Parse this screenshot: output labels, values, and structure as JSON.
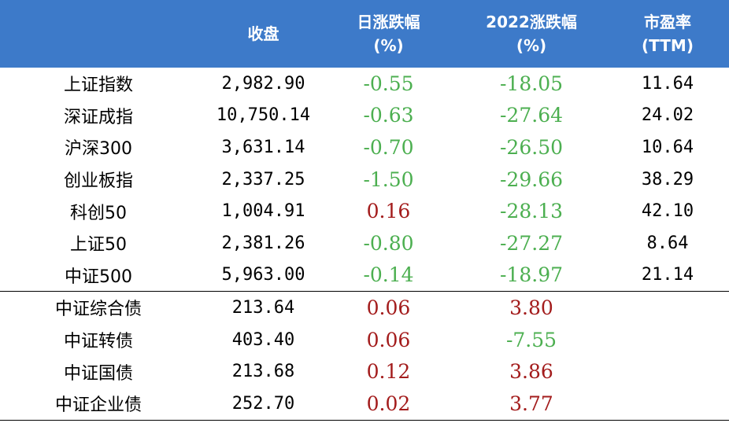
{
  "colors": {
    "header_bg": "#3d7ac9",
    "header_text": "#ffffff",
    "negative": "#4caf50",
    "positive": "#a31c1c"
  },
  "header": {
    "name": "",
    "close": "收盘",
    "daily_change": [
      "日涨跌幅",
      "(%)"
    ],
    "ytd_change": [
      "2022涨跌幅",
      "(%)"
    ],
    "pe": [
      "市盈率",
      "(TTM)"
    ]
  },
  "rows": [
    {
      "name": "上证指数",
      "close": "2,982.90",
      "daily": "-0.55",
      "daily_sign": "neg",
      "ytd": "-18.05",
      "ytd_sign": "neg",
      "pe": "11.64"
    },
    {
      "name": "深证成指",
      "close": "10,750.14",
      "daily": "-0.63",
      "daily_sign": "neg",
      "ytd": "-27.64",
      "ytd_sign": "neg",
      "pe": "24.02"
    },
    {
      "name": "沪深300",
      "close": "3,631.14",
      "daily": "-0.70",
      "daily_sign": "neg",
      "ytd": "-26.50",
      "ytd_sign": "neg",
      "pe": "10.64"
    },
    {
      "name": "创业板指",
      "close": "2,337.25",
      "daily": "-1.50",
      "daily_sign": "neg",
      "ytd": "-29.66",
      "ytd_sign": "neg",
      "pe": "38.29"
    },
    {
      "name": "科创50",
      "close": "1,004.91",
      "daily": "0.16",
      "daily_sign": "pos",
      "ytd": "-28.13",
      "ytd_sign": "neg",
      "pe": "42.10"
    },
    {
      "name": "上证50",
      "close": "2,381.26",
      "daily": "-0.80",
      "daily_sign": "neg",
      "ytd": "-27.27",
      "ytd_sign": "neg",
      "pe": "8.64"
    },
    {
      "name": "中证500",
      "close": "5,963.00",
      "daily": "-0.14",
      "daily_sign": "neg",
      "ytd": "-18.97",
      "ytd_sign": "neg",
      "pe": "21.14"
    },
    {
      "name": "中证综合债",
      "close": "213.64",
      "daily": "0.06",
      "daily_sign": "pos",
      "ytd": "3.80",
      "ytd_sign": "pos",
      "pe": ""
    },
    {
      "name": "中证转债",
      "close": "403.40",
      "daily": "0.06",
      "daily_sign": "pos",
      "ytd": "-7.55",
      "ytd_sign": "neg",
      "pe": ""
    },
    {
      "name": "中证国债",
      "close": "213.68",
      "daily": "0.12",
      "daily_sign": "pos",
      "ytd": "3.86",
      "ytd_sign": "pos",
      "pe": ""
    },
    {
      "name": "中证企业债",
      "close": "252.70",
      "daily": "0.02",
      "daily_sign": "pos",
      "ytd": "3.77",
      "ytd_sign": "pos",
      "pe": ""
    }
  ]
}
